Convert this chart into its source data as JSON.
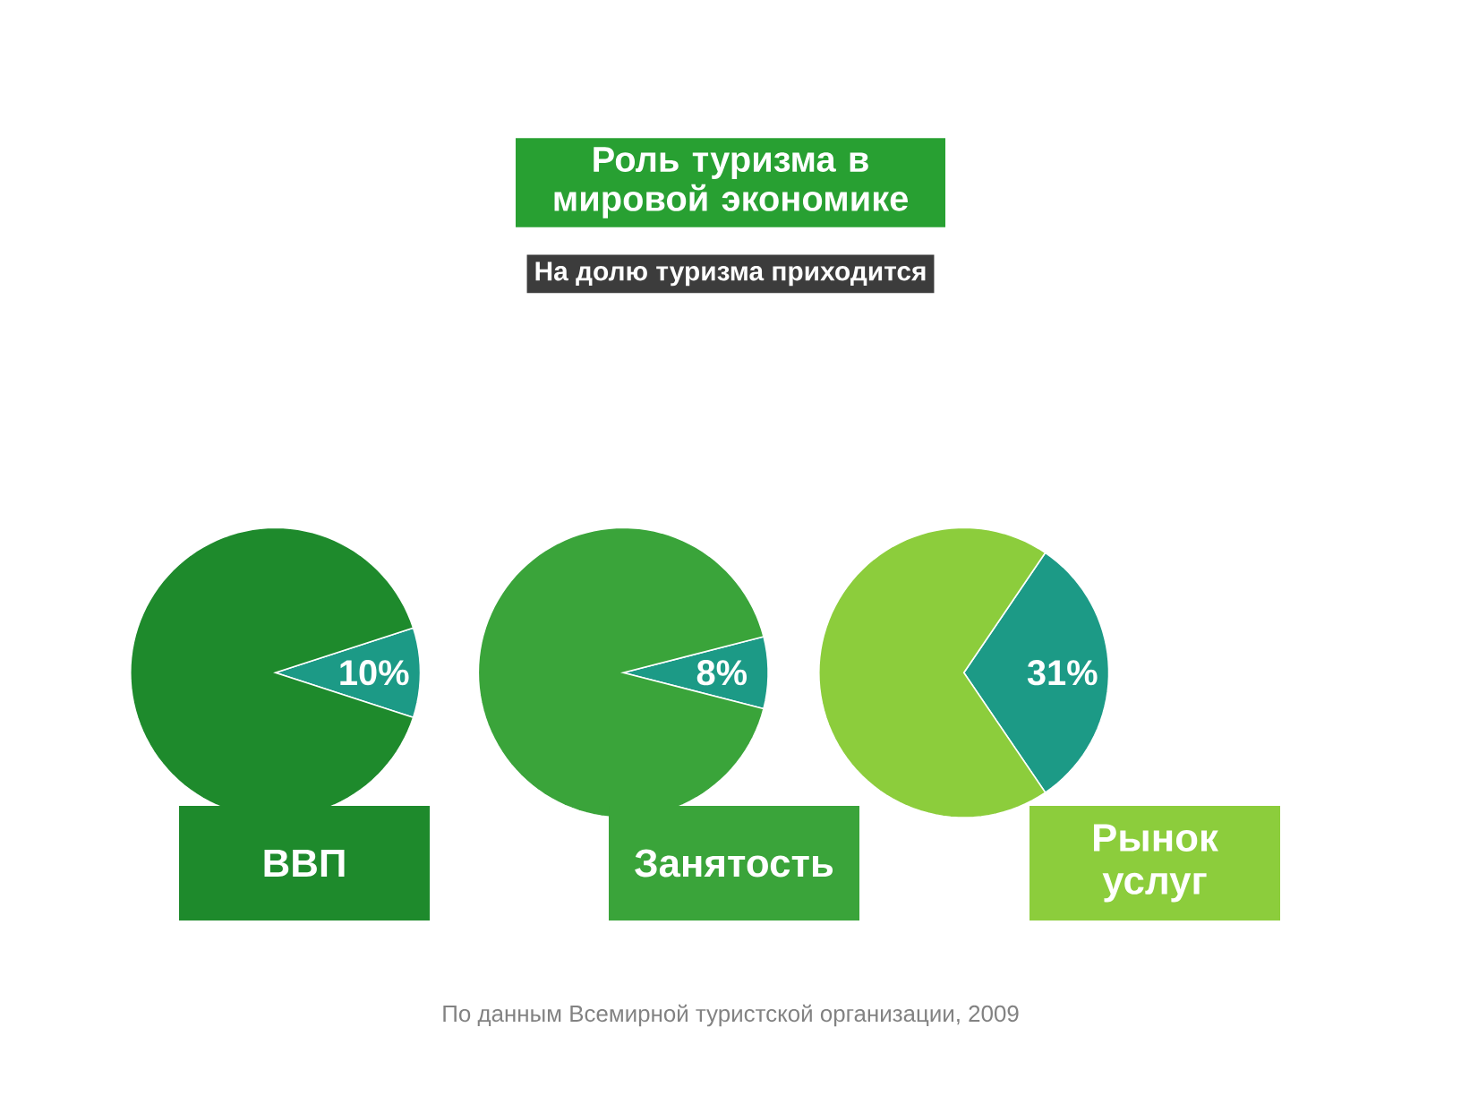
{
  "chart_data": [
    {
      "type": "pie",
      "title": "ВВП",
      "categories": [
        null,
        null
      ],
      "values": [
        10,
        90
      ],
      "value_labels": [
        "10%",
        null
      ],
      "colors": [
        "#1c9a86",
        "#1e8a2c"
      ],
      "annotations": [
        "Роль туризма в мировой экономике",
        "На долю туризма приходится",
        "По данным Всемирной туристской организации, 2009"
      ]
    },
    {
      "type": "pie",
      "title": "Занятость",
      "categories": [
        null,
        null
      ],
      "values": [
        8,
        92
      ],
      "value_labels": [
        "8%",
        null
      ],
      "colors": [
        "#1c9a86",
        "#3aa43a"
      ]
    },
    {
      "type": "pie",
      "title": "Рынок услуг",
      "categories": [
        null,
        null
      ],
      "values": [
        31,
        69
      ],
      "value_labels": [
        "31%",
        null
      ],
      "colors": [
        "#1c9a86",
        "#8ccd3c"
      ]
    }
  ]
}
